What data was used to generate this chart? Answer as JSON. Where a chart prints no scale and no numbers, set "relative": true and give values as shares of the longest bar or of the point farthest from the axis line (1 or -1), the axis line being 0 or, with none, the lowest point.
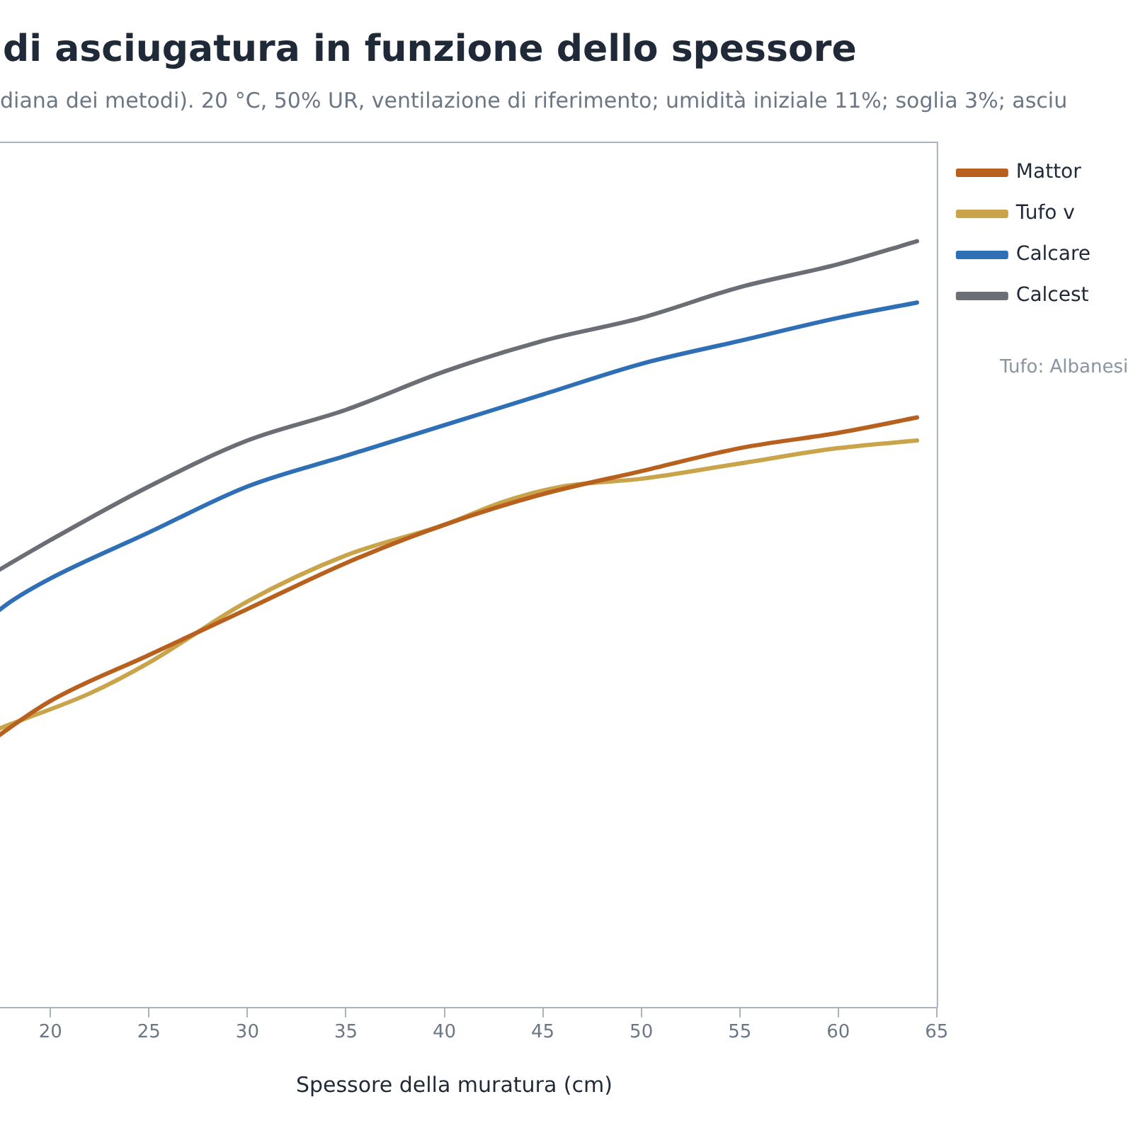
{
  "chart_data": {
    "type": "line",
    "title": "di asciugatura in funzione dello spessore",
    "subtitle": "diana dei metodi). 20 °C, 50% UR, ventilazione di riferimento; umidità iniziale 11%; soglia 3%; asciu",
    "xlabel": "Spessore della muratura (cm)",
    "relative": true,
    "xlim": [
      16,
      65
    ],
    "xticks": [
      20,
      25,
      30,
      35,
      40,
      45,
      50,
      55,
      60,
      65
    ],
    "legend": "top right",
    "marker": "none",
    "line_style": "solid",
    "annotations": [
      "Tufo: Albanesi"
    ],
    "series": [
      {
        "name": "Mattor",
        "color": "#b8601e",
        "x": [
          16,
          20,
          25,
          30,
          35,
          40,
          45,
          50,
          55,
          60,
          64
        ],
        "values": [
          0.33,
          0.4,
          0.46,
          0.52,
          0.58,
          0.63,
          0.67,
          0.7,
          0.73,
          0.75,
          0.77
        ]
      },
      {
        "name": "Tufo v",
        "color": "#c9a44a",
        "x": [
          16,
          18,
          22,
          25,
          30,
          35,
          40,
          43,
          46,
          50,
          55,
          60,
          64
        ],
        "values": [
          0.35,
          0.37,
          0.41,
          0.45,
          0.53,
          0.59,
          0.63,
          0.66,
          0.68,
          0.69,
          0.71,
          0.73,
          0.74
        ]
      },
      {
        "name": "Calcare",
        "color": "#2f6fb5",
        "x": [
          16,
          18,
          20,
          25,
          30,
          35,
          40,
          45,
          50,
          55,
          60,
          64
        ],
        "values": [
          0.49,
          0.53,
          0.56,
          0.62,
          0.68,
          0.72,
          0.76,
          0.8,
          0.84,
          0.87,
          0.9,
          0.92
        ]
      },
      {
        "name": "Calcest",
        "color": "#6b6e74",
        "x": [
          16,
          20,
          25,
          30,
          35,
          40,
          45,
          50,
          55,
          60,
          64
        ],
        "values": [
          0.55,
          0.61,
          0.68,
          0.74,
          0.78,
          0.83,
          0.87,
          0.9,
          0.94,
          0.97,
          1
        ]
      }
    ]
  }
}
